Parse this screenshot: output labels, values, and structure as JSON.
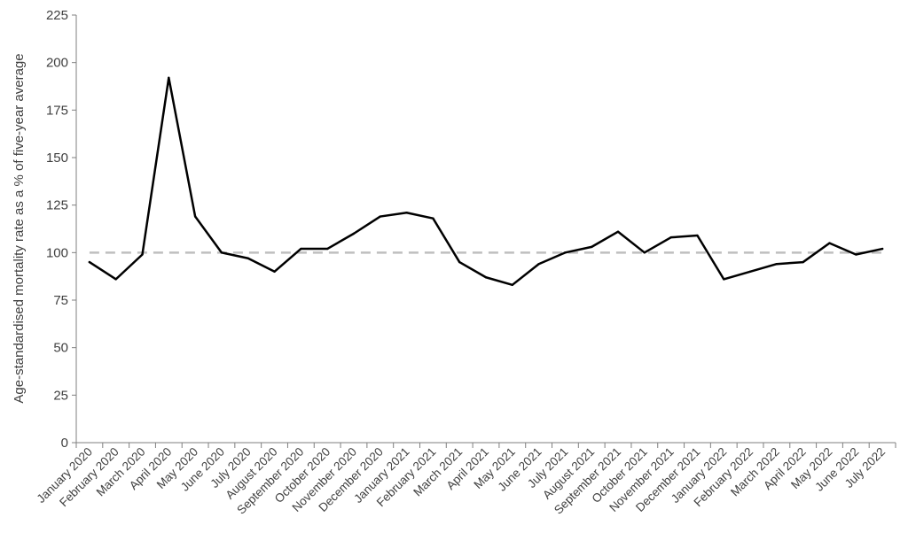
{
  "chart_data": {
    "type": "line",
    "ylabel": "Age-standardised mortality rate as a % of five-year average",
    "xlabel": "",
    "ylim": [
      0,
      225
    ],
    "yticks": [
      0,
      25,
      50,
      75,
      100,
      125,
      150,
      175,
      200,
      225
    ],
    "grid": false,
    "legend": "none",
    "categories": [
      "January 2020",
      "February 2020",
      "March 2020",
      "April 2020",
      "May 2020",
      "June 2020",
      "July 2020",
      "August 2020",
      "September 2020",
      "October 2020",
      "November 2020",
      "December 2020",
      "January 2021",
      "February 2021",
      "March 2021",
      "April 2021",
      "May 2021",
      "June 2021",
      "July 2021",
      "August 2021",
      "September 2021",
      "October 2021",
      "November 2021",
      "December 2021",
      "January 2022",
      "February 2022",
      "March 2022",
      "April 2022",
      "May 2022",
      "June 2022",
      "July 2022"
    ],
    "series": [
      {
        "values": [
          95,
          86,
          99,
          192,
          119,
          100,
          97,
          90,
          102,
          102,
          110,
          119,
          121,
          118,
          95,
          87,
          83,
          94,
          100,
          103,
          111,
          100,
          108,
          109,
          86,
          90,
          94,
          95,
          105,
          99,
          102
        ],
        "color": "#000000"
      }
    ],
    "reference_line": {
      "value": 100,
      "color": "#bfbfbf",
      "style": "dashed"
    }
  }
}
